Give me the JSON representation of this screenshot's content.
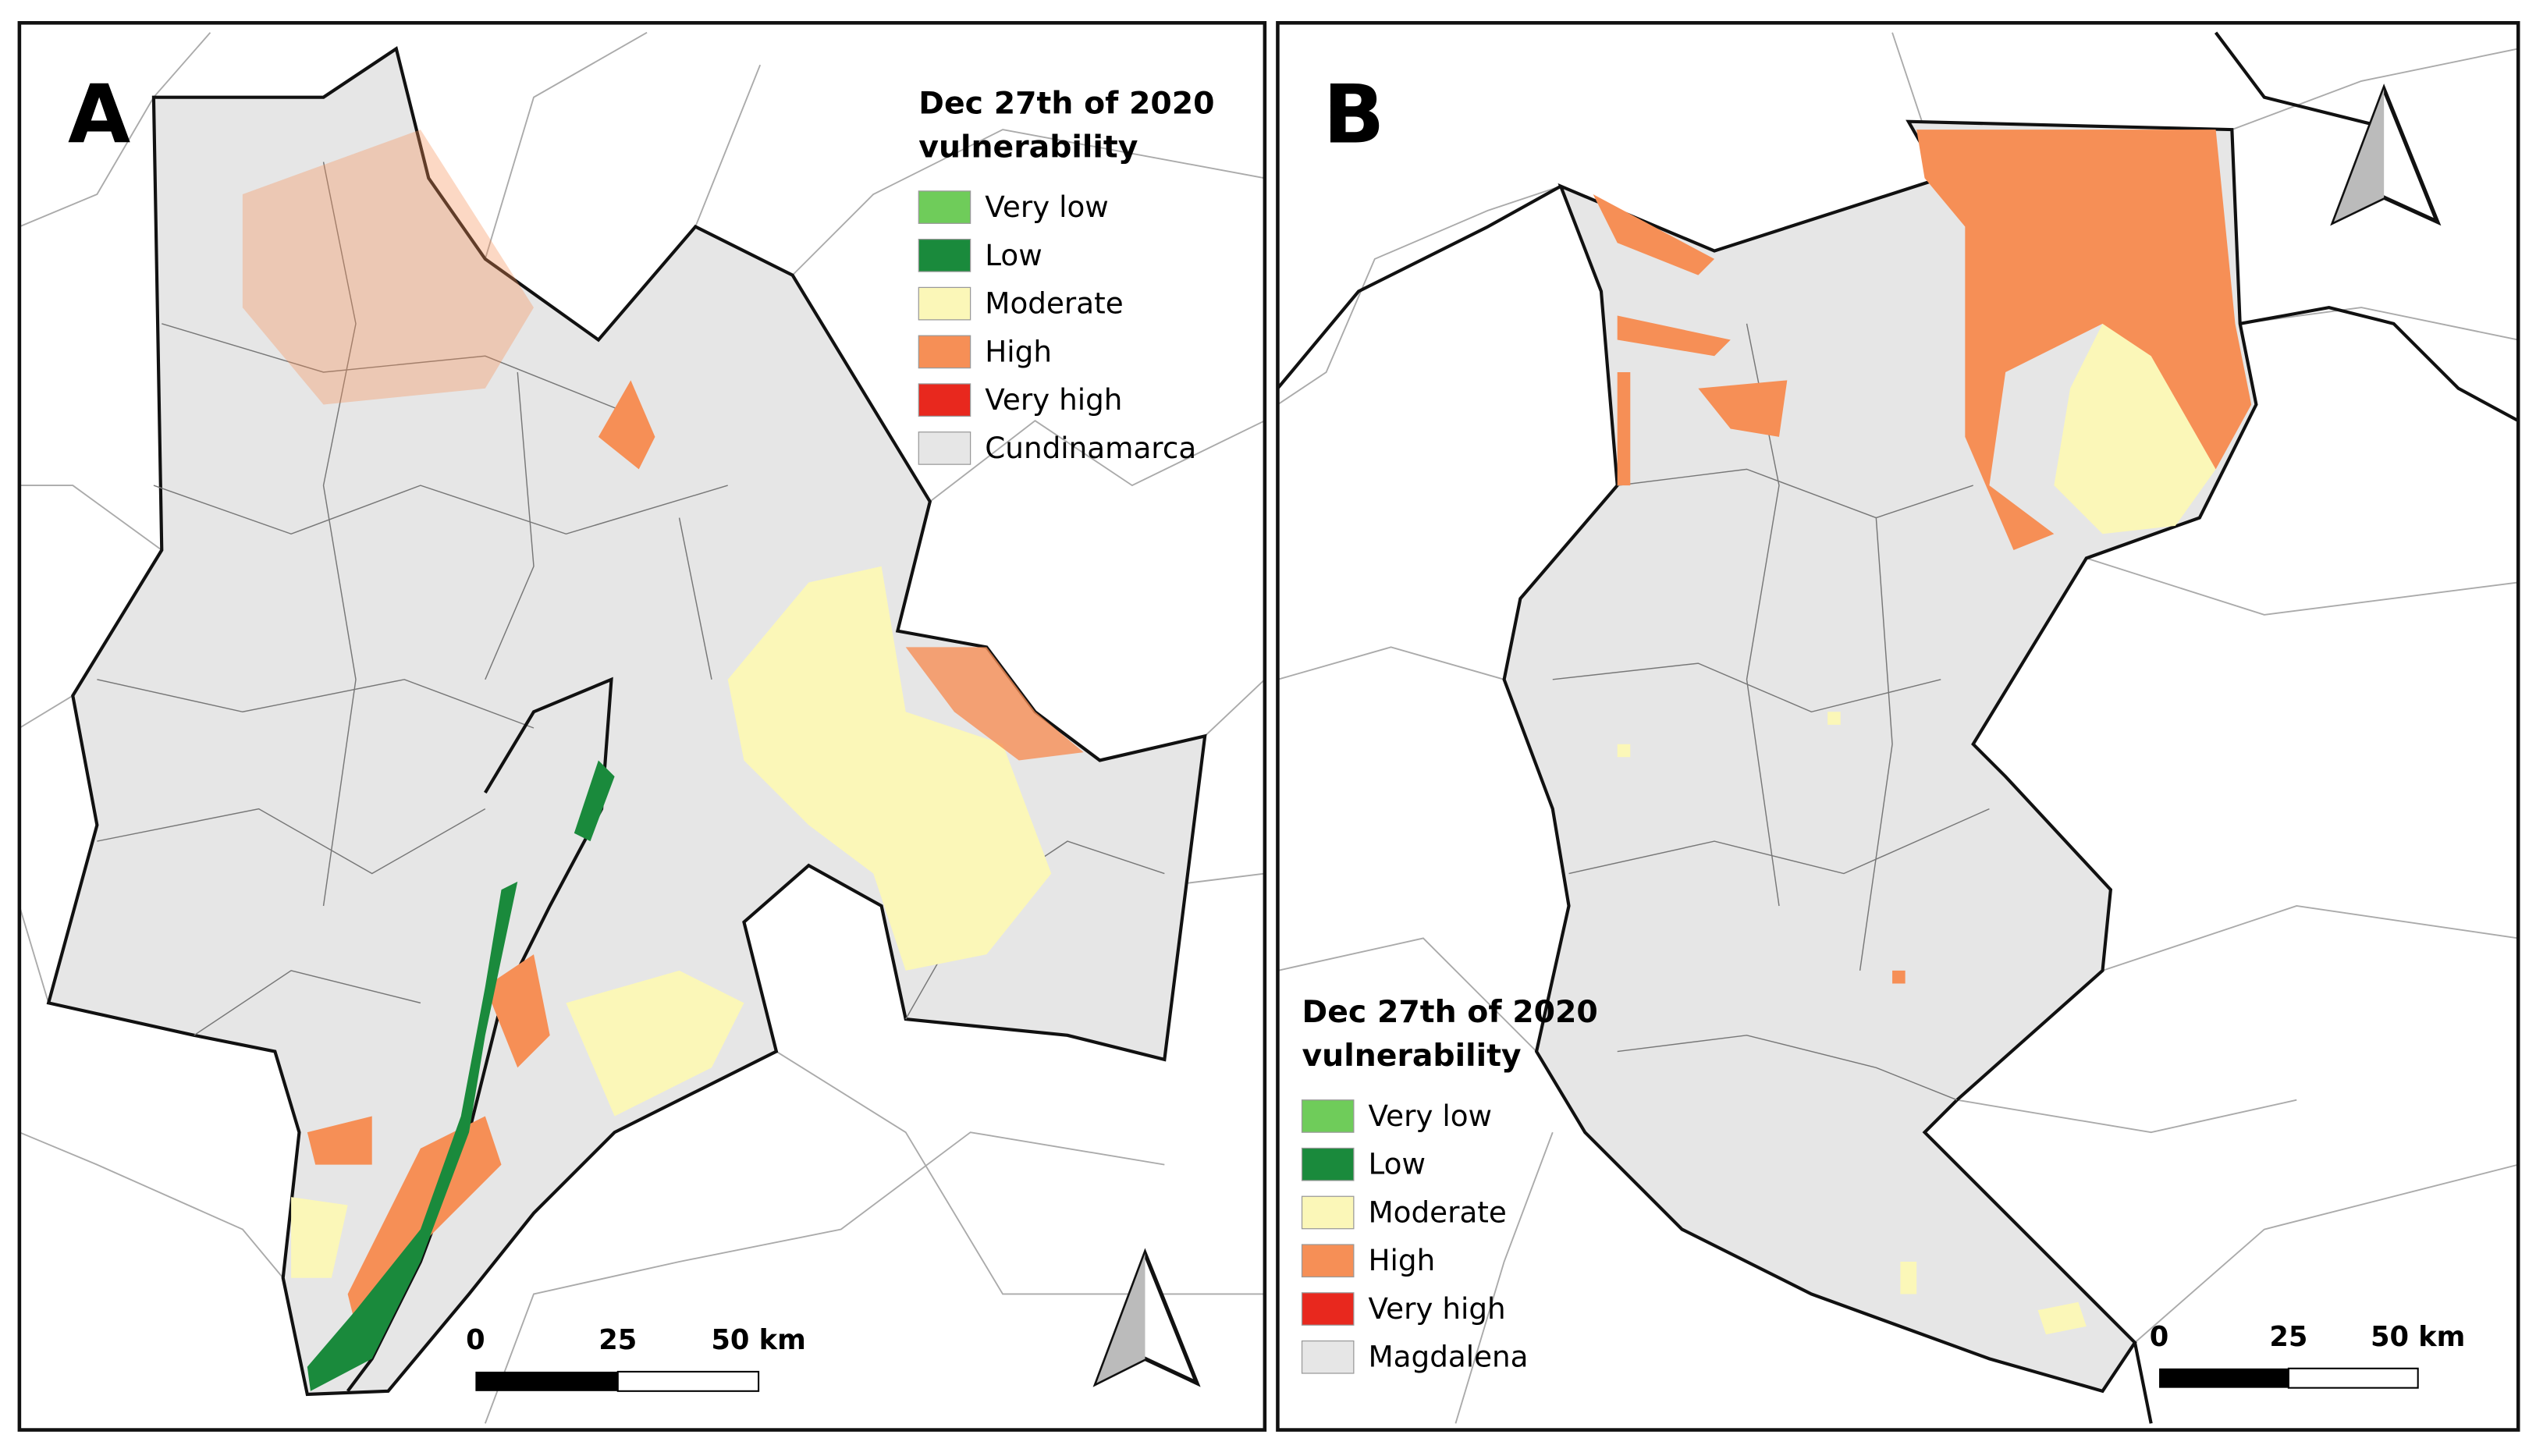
{
  "panels": [
    {
      "label": "A",
      "legend": {
        "title_lines": [
          "Dec 27th of 2020",
          "vulnerability"
        ],
        "items": [
          {
            "label": "Very low",
            "color": "#6fcc5a"
          },
          {
            "label": "Low",
            "color": "#1a8a3c"
          },
          {
            "label": "Moderate",
            "color": "#fbf7b8"
          },
          {
            "label": "High",
            "color": "#f68f56"
          },
          {
            "label": "Very high",
            "color": "#e8281e"
          },
          {
            "label": "Cundinamarca",
            "color": "#e6e6e6"
          }
        ]
      },
      "scale": [
        "0",
        "25",
        "50 km"
      ]
    },
    {
      "label": "B",
      "legend": {
        "title_lines": [
          "Dec 27th of 2020",
          "vulnerability"
        ],
        "items": [
          {
            "label": "Very low",
            "color": "#6fcc5a"
          },
          {
            "label": "Low",
            "color": "#1a8a3c"
          },
          {
            "label": "Moderate",
            "color": "#fbf7b8"
          },
          {
            "label": "High",
            "color": "#f68f56"
          },
          {
            "label": "Very high",
            "color": "#e8281e"
          },
          {
            "label": "Magdalena",
            "color": "#e6e6e6"
          }
        ]
      },
      "scale": [
        "0",
        "25",
        "50 km"
      ]
    }
  ]
}
